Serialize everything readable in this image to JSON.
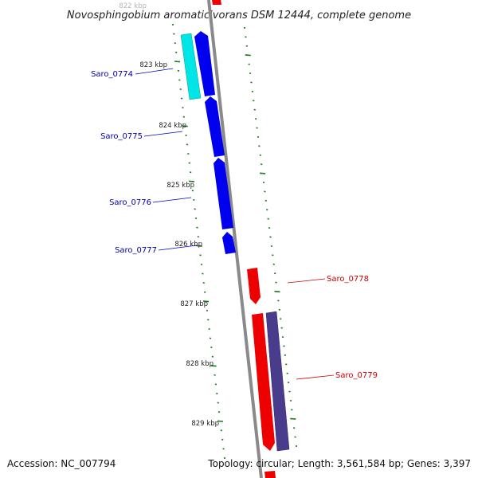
{
  "title": "Novosphingobium aromaticivorans DSM 12444, complete genome",
  "footer": {
    "accession": "Accession: NC_007794",
    "summary": "Topology: circular; Length: 3,561,584 bp; Genes: 3,397"
  },
  "ticks": [
    "822 kbp",
    "823 kbp",
    "824 kbp",
    "825 kbp",
    "826 kbp",
    "827 kbp",
    "828 kbp",
    "829 kbp"
  ],
  "genes": [
    {
      "name": "Saro_0774",
      "strand": "forward",
      "color": "#0000ee"
    },
    {
      "name": "Saro_0775",
      "strand": "forward",
      "color": "#0000ee"
    },
    {
      "name": "Saro_0776",
      "strand": "forward",
      "color": "#0000ee"
    },
    {
      "name": "Saro_0777",
      "strand": "forward",
      "color": "#0000ee"
    },
    {
      "name": "Saro_0778",
      "strand": "reverse",
      "color": "#ee0000"
    },
    {
      "name": "Saro_0779",
      "strand": "reverse",
      "color": "#ee0000"
    }
  ],
  "colors": {
    "forward_cds": "#0000ee",
    "reverse_cds": "#ee0000",
    "forward_feature": "#00e5e5",
    "reverse_feature": "#4a3c8c",
    "backbone": "#8a8a8a",
    "tick_green": "#1a7a1a",
    "forward_label": "#0000aa",
    "reverse_label": "#cc0000"
  }
}
